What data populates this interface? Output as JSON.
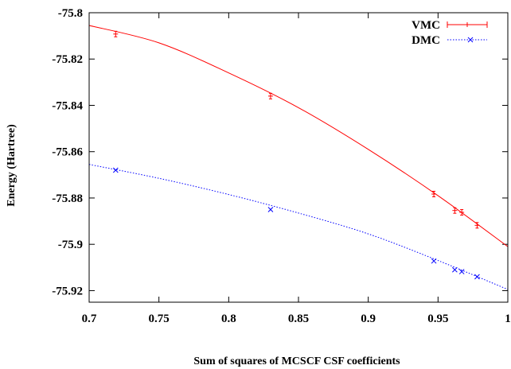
{
  "chart_data": {
    "type": "line",
    "title": "",
    "xlabel": "Sum of squares of MCSCF CSF coefficients",
    "ylabel": "Energy (Hartree)",
    "xlim": [
      0.7,
      1.0
    ],
    "ylim": [
      -75.925,
      -75.8
    ],
    "xticks": [
      0.7,
      0.75,
      0.8,
      0.85,
      0.9,
      0.95,
      1.0
    ],
    "xtick_labels": [
      "0.7",
      "0.75",
      "0.8",
      "0.85",
      "0.9",
      "0.95",
      "1"
    ],
    "yticks": [
      -75.92,
      -75.9,
      -75.88,
      -75.86,
      -75.84,
      -75.82,
      -75.8
    ],
    "ytick_labels": [
      "-75.92",
      "-75.9",
      "-75.88",
      "-75.86",
      "-75.84",
      "-75.82",
      "-75.8"
    ],
    "grid": false,
    "legend_position": "top-right",
    "series": [
      {
        "name": "VMC",
        "color": "#ff0000",
        "marker": "plus",
        "line_style": "solid",
        "points": [
          {
            "x": 0.719,
            "y": -75.8092
          },
          {
            "x": 0.83,
            "y": -75.836
          },
          {
            "x": 0.947,
            "y": -75.8783
          },
          {
            "x": 0.962,
            "y": -75.8854
          },
          {
            "x": 0.967,
            "y": -75.8862
          },
          {
            "x": 0.978,
            "y": -75.8918
          }
        ],
        "fit_curve": [
          {
            "x": 0.7,
            "y": -75.8055
          },
          {
            "x": 0.75,
            "y": -75.813
          },
          {
            "x": 0.8,
            "y": -75.826
          },
          {
            "x": 0.85,
            "y": -75.841
          },
          {
            "x": 0.9,
            "y": -75.859
          },
          {
            "x": 0.95,
            "y": -75.879
          },
          {
            "x": 1.0,
            "y": -75.901
          }
        ]
      },
      {
        "name": "DMC",
        "color": "#0000ff",
        "marker": "cross",
        "line_style": "dotted",
        "points": [
          {
            "x": 0.719,
            "y": -75.868
          },
          {
            "x": 0.83,
            "y": -75.885
          },
          {
            "x": 0.947,
            "y": -75.9072
          },
          {
            "x": 0.962,
            "y": -75.911
          },
          {
            "x": 0.967,
            "y": -75.9118
          },
          {
            "x": 0.978,
            "y": -75.914
          }
        ],
        "fit_curve": [
          {
            "x": 0.7,
            "y": -75.8655
          },
          {
            "x": 0.75,
            "y": -75.8715
          },
          {
            "x": 0.8,
            "y": -75.8785
          },
          {
            "x": 0.85,
            "y": -75.8865
          },
          {
            "x": 0.9,
            "y": -75.8955
          },
          {
            "x": 0.95,
            "y": -75.907
          },
          {
            "x": 1.0,
            "y": -75.9195
          }
        ]
      }
    ]
  }
}
